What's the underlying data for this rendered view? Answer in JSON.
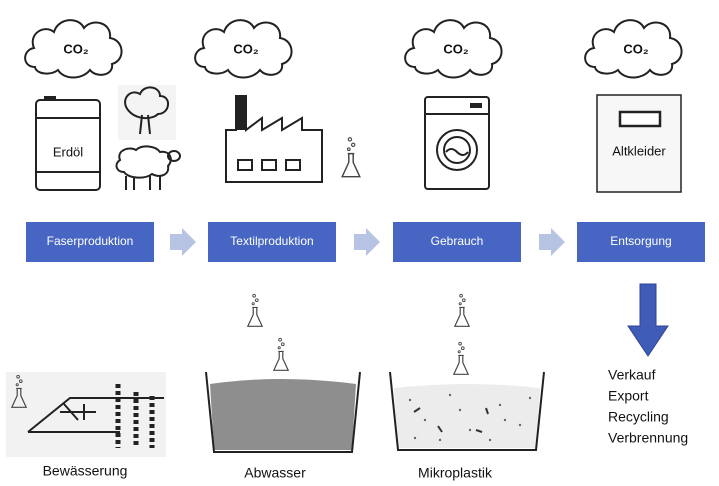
{
  "stages": [
    {
      "label": "Faserproduktion",
      "emission": "CO₂"
    },
    {
      "label": "Textilproduktion",
      "emission": "CO₂"
    },
    {
      "label": "Gebrauch",
      "emission": "CO₂"
    },
    {
      "label": "Entsorgung",
      "emission": "CO₂"
    }
  ],
  "icon_labels": {
    "barrel": "Erdöl",
    "container": "Altkleider"
  },
  "impacts": [
    "Bewässerung",
    "Abwasser",
    "Mikroplastik"
  ],
  "disposal_options": [
    "Verkauf",
    "Export",
    "Recycling",
    "Verbrennung"
  ]
}
